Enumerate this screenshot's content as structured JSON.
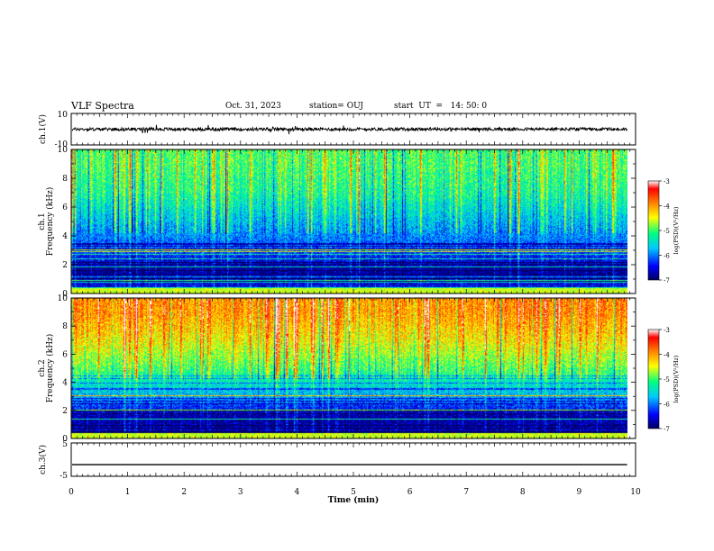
{
  "header": {
    "title": "VLF Spectra",
    "date": "Oct. 31, 2023",
    "station": "station= OUJ",
    "start": "start  UT  =   14: 50: 0"
  },
  "panels": {
    "ch1v": {
      "ylabel": "ch.1(V)",
      "ticks": [
        "10",
        "-10"
      ]
    },
    "ch1": {
      "ylabel1": "ch.1",
      "ylabel2": "Frequency (kHz)",
      "ticks": [
        "0",
        "2",
        "4",
        "6",
        "8",
        "10"
      ]
    },
    "ch2": {
      "ylabel1": "ch.2",
      "ylabel2": "Frequency (kHz)",
      "ticks": [
        "0",
        "2",
        "4",
        "6",
        "8",
        "10"
      ]
    },
    "ch3v": {
      "ylabel": "ch.3(V)",
      "ticks": [
        "5",
        "-5"
      ]
    }
  },
  "colorbar": {
    "label": "log(PSD)(V²/Hz)",
    "ticks": [
      "-3",
      "-4",
      "-5",
      "-6",
      "-7"
    ],
    "colors": [
      "#000060",
      "#0000ff",
      "#00c8ff",
      "#00ff80",
      "#ffff00",
      "#ff8000",
      "#ff0000",
      "#ffffff"
    ]
  },
  "chart_data": [
    {
      "type": "line",
      "title": "ch.1(V)",
      "xlabel": "Time (min)",
      "ylabel": "ch.1(V)",
      "xlim": [
        0,
        10
      ],
      "ylim": [
        -10,
        10
      ],
      "data_end_min": 9.85,
      "approx_level_V": 0,
      "approx_noise_band_V": [
        -1,
        1
      ]
    },
    {
      "type": "heatmap",
      "title": "ch.1",
      "ylabel": "Frequency (kHz)",
      "xlim": [
        0,
        10
      ],
      "ylim": [
        0,
        10
      ],
      "colorbar_range_logPSD": [
        -7,
        -3
      ],
      "approx_logPSD_by_freq_kHz": {
        "0.5": -6.5,
        "1.5": -6.8,
        "3": -6.2,
        "5": -5.7,
        "7": -5.2,
        "9": -5.0
      }
    },
    {
      "type": "heatmap",
      "title": "ch.2",
      "ylabel": "Frequency (kHz)",
      "xlim": [
        0,
        10
      ],
      "ylim": [
        0,
        10
      ],
      "colorbar_range_logPSD": [
        -7,
        -3
      ],
      "approx_logPSD_by_freq_kHz": {
        "0.5": -6.7,
        "1.5": -6.8,
        "3": -5.8,
        "5": -5.0,
        "7": -4.4,
        "9": -4.0
      }
    },
    {
      "type": "line",
      "title": "ch.3(V)",
      "xlabel": "Time (min)",
      "ylabel": "ch.3(V)",
      "xlim": [
        0,
        10
      ],
      "ylim": [
        -5,
        5
      ],
      "data_end_min": 9.85,
      "approx_level_V": -1.5
    }
  ],
  "xaxis": {
    "label": "Time (min)",
    "ticks": [
      "0",
      "1",
      "2",
      "3",
      "4",
      "5",
      "6",
      "7",
      "8",
      "9",
      "10"
    ]
  }
}
